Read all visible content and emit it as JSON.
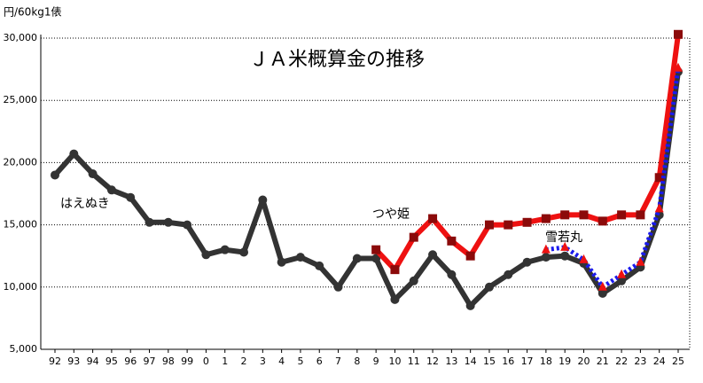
{
  "chart_data": {
    "type": "line",
    "title": "ＪＡ米概算金の推移",
    "y_label": "円/60kg1俵",
    "categories": [
      "92",
      "93",
      "94",
      "95",
      "96",
      "97",
      "98",
      "99",
      "0",
      "1",
      "2",
      "3",
      "4",
      "5",
      "6",
      "7",
      "8",
      "9",
      "10",
      "11",
      "12",
      "13",
      "14",
      "15",
      "16",
      "17",
      "18",
      "19",
      "20",
      "21",
      "22",
      "23",
      "24",
      "25"
    ],
    "series": [
      {
        "name": "はえぬき",
        "color": "#333333",
        "marker": "circle",
        "values": [
          19000,
          20700,
          19100,
          17800,
          17200,
          15200,
          15200,
          15000,
          12600,
          13000,
          12800,
          17000,
          12000,
          12400,
          11700,
          10000,
          12300,
          12300,
          9000,
          10500,
          12600,
          11000,
          8500,
          10000,
          11000,
          12000,
          12400,
          12500,
          11900,
          9500,
          10500,
          11600,
          15800,
          27300
        ]
      },
      {
        "name": "つや姫",
        "color": "#ee1111",
        "marker": "square",
        "marker_color": "#8b0a0a",
        "values": [
          null,
          null,
          null,
          null,
          null,
          null,
          null,
          null,
          null,
          null,
          null,
          null,
          null,
          null,
          null,
          null,
          null,
          13000,
          11400,
          14000,
          15500,
          13700,
          12500,
          15000,
          15000,
          15200,
          15500,
          15800,
          15800,
          15300,
          15800,
          15800,
          18800,
          30300
        ]
      },
      {
        "name": "雪若丸",
        "color": "#1a1aee",
        "marker": "triangle",
        "marker_color": "#ee1111",
        "dashed": true,
        "values": [
          null,
          null,
          null,
          null,
          null,
          null,
          null,
          null,
          null,
          null,
          null,
          null,
          null,
          null,
          null,
          null,
          null,
          null,
          null,
          null,
          null,
          null,
          null,
          null,
          null,
          null,
          13000,
          13200,
          12200,
          10000,
          11000,
          12000,
          16300,
          27600
        ]
      }
    ],
    "ylim": [
      5000,
      30000
    ],
    "yticks": [
      {
        "value": 5000,
        "label": "5,000"
      },
      {
        "value": 10000,
        "label": "10,000"
      },
      {
        "value": 15000,
        "label": "15,000"
      },
      {
        "value": 20000,
        "label": "20,000"
      },
      {
        "value": 25000,
        "label": "25,000"
      },
      {
        "value": 30000,
        "label": "30,000"
      }
    ],
    "grid": true
  }
}
